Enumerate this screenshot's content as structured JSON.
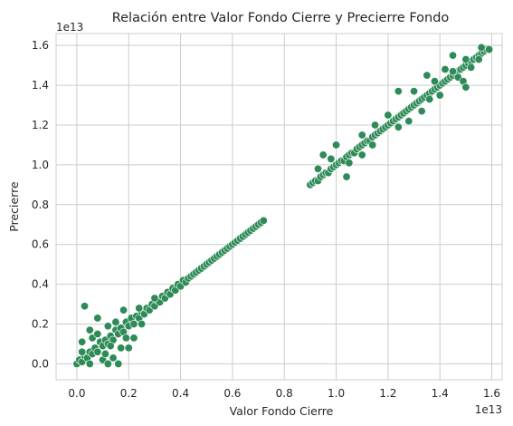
{
  "chart_data": {
    "type": "scatter",
    "title": "Relación entre Valor Fondo Cierre y Precierre Fondo",
    "xlabel": "Valor Fondo Cierre",
    "ylabel": "Precierre",
    "x_offset_label": "1e13",
    "y_offset_label": "1e13",
    "xlim": [
      -0.08,
      1.64
    ],
    "ylim": [
      -0.08,
      1.66
    ],
    "xticks": [
      0.0,
      0.2,
      0.4,
      0.6,
      0.8,
      1.0,
      1.2,
      1.4,
      1.6
    ],
    "yticks": [
      0.0,
      0.2,
      0.4,
      0.6,
      0.8,
      1.0,
      1.2,
      1.4,
      1.6
    ],
    "xtick_labels": [
      "0.0",
      "0.2",
      "0.4",
      "0.6",
      "0.8",
      "1.0",
      "1.2",
      "1.4",
      "1.6"
    ],
    "ytick_labels": [
      "0.0",
      "0.2",
      "0.4",
      "0.6",
      "0.8",
      "1.0",
      "1.2",
      "1.4",
      "1.6"
    ],
    "grid": true,
    "point_color": "#2e8b57",
    "series": [
      {
        "points": [
          [
            0.0,
            0.0
          ],
          [
            0.01,
            0.02
          ],
          [
            0.02,
            0.01
          ],
          [
            0.03,
            0.04
          ],
          [
            0.04,
            0.03
          ],
          [
            0.05,
            0.06
          ],
          [
            0.06,
            0.05
          ],
          [
            0.07,
            0.08
          ],
          [
            0.08,
            0.06
          ],
          [
            0.09,
            0.11
          ],
          [
            0.1,
            0.09
          ],
          [
            0.11,
            0.12
          ],
          [
            0.12,
            0.1
          ],
          [
            0.13,
            0.14
          ],
          [
            0.14,
            0.12
          ],
          [
            0.15,
            0.17
          ],
          [
            0.16,
            0.15
          ],
          [
            0.17,
            0.18
          ],
          [
            0.18,
            0.16
          ],
          [
            0.19,
            0.21
          ],
          [
            0.2,
            0.19
          ],
          [
            0.21,
            0.23
          ],
          [
            0.22,
            0.2
          ],
          [
            0.23,
            0.24
          ],
          [
            0.24,
            0.23
          ],
          [
            0.25,
            0.26
          ],
          [
            0.26,
            0.25
          ],
          [
            0.27,
            0.28
          ],
          [
            0.28,
            0.27
          ],
          [
            0.29,
            0.3
          ],
          [
            0.3,
            0.29
          ],
          [
            0.31,
            0.32
          ],
          [
            0.32,
            0.31
          ],
          [
            0.33,
            0.34
          ],
          [
            0.34,
            0.33
          ],
          [
            0.35,
            0.36
          ],
          [
            0.36,
            0.35
          ],
          [
            0.37,
            0.38
          ],
          [
            0.38,
            0.37
          ],
          [
            0.39,
            0.4
          ],
          [
            0.4,
            0.39
          ],
          [
            0.41,
            0.42
          ],
          [
            0.42,
            0.41
          ],
          [
            0.43,
            0.43
          ],
          [
            0.44,
            0.44
          ],
          [
            0.45,
            0.45
          ],
          [
            0.46,
            0.46
          ],
          [
            0.47,
            0.47
          ],
          [
            0.48,
            0.48
          ],
          [
            0.49,
            0.49
          ],
          [
            0.5,
            0.5
          ],
          [
            0.51,
            0.51
          ],
          [
            0.52,
            0.52
          ],
          [
            0.53,
            0.53
          ],
          [
            0.54,
            0.54
          ],
          [
            0.55,
            0.55
          ],
          [
            0.56,
            0.56
          ],
          [
            0.57,
            0.57
          ],
          [
            0.58,
            0.58
          ],
          [
            0.59,
            0.59
          ],
          [
            0.6,
            0.6
          ],
          [
            0.61,
            0.61
          ],
          [
            0.62,
            0.62
          ],
          [
            0.63,
            0.63
          ],
          [
            0.64,
            0.64
          ],
          [
            0.65,
            0.65
          ],
          [
            0.66,
            0.66
          ],
          [
            0.67,
            0.67
          ],
          [
            0.68,
            0.68
          ],
          [
            0.69,
            0.69
          ],
          [
            0.7,
            0.7
          ],
          [
            0.71,
            0.71
          ],
          [
            0.72,
            0.72
          ],
          [
            0.03,
            0.29
          ],
          [
            0.08,
            0.23
          ],
          [
            0.05,
            0.17
          ],
          [
            0.12,
            0.19
          ],
          [
            0.15,
            0.21
          ],
          [
            0.18,
            0.27
          ],
          [
            0.02,
            0.11
          ],
          [
            0.06,
            0.13
          ],
          [
            0.1,
            0.02
          ],
          [
            0.14,
            0.03
          ],
          [
            0.16,
            0.0
          ],
          [
            0.17,
            0.08
          ],
          [
            0.2,
            0.08
          ],
          [
            0.22,
            0.13
          ],
          [
            0.25,
            0.2
          ],
          [
            0.05,
            0.0
          ],
          [
            0.12,
            0.0
          ],
          [
            0.02,
            0.06
          ],
          [
            0.24,
            0.28
          ],
          [
            0.3,
            0.33
          ],
          [
            0.08,
            0.15
          ],
          [
            0.11,
            0.05
          ],
          [
            0.13,
            0.09
          ],
          [
            0.19,
            0.13
          ],
          [
            0.9,
            0.9
          ],
          [
            0.91,
            0.91
          ],
          [
            0.92,
            0.92
          ],
          [
            0.93,
            0.92
          ],
          [
            0.94,
            0.94
          ],
          [
            0.95,
            0.95
          ],
          [
            0.96,
            0.96
          ],
          [
            0.97,
            0.96
          ],
          [
            0.98,
            0.98
          ],
          [
            0.99,
            0.99
          ],
          [
            1.0,
            1.0
          ],
          [
            1.01,
            1.01
          ],
          [
            1.02,
            1.02
          ],
          [
            1.03,
            1.02
          ],
          [
            1.04,
            1.04
          ],
          [
            1.05,
            1.05
          ],
          [
            1.06,
            1.06
          ],
          [
            1.07,
            1.06
          ],
          [
            1.08,
            1.08
          ],
          [
            1.09,
            1.09
          ],
          [
            1.1,
            1.1
          ],
          [
            1.11,
            1.11
          ],
          [
            1.12,
            1.12
          ],
          [
            1.13,
            1.12
          ],
          [
            1.14,
            1.14
          ],
          [
            1.15,
            1.15
          ],
          [
            1.16,
            1.16
          ],
          [
            1.17,
            1.17
          ],
          [
            1.18,
            1.18
          ],
          [
            1.19,
            1.19
          ],
          [
            1.2,
            1.2
          ],
          [
            1.21,
            1.21
          ],
          [
            1.22,
            1.22
          ],
          [
            1.23,
            1.23
          ],
          [
            1.24,
            1.24
          ],
          [
            1.25,
            1.25
          ],
          [
            1.26,
            1.26
          ],
          [
            1.27,
            1.27
          ],
          [
            1.28,
            1.28
          ],
          [
            1.29,
            1.29
          ],
          [
            1.3,
            1.3
          ],
          [
            1.31,
            1.31
          ],
          [
            1.32,
            1.32
          ],
          [
            1.33,
            1.33
          ],
          [
            1.34,
            1.34
          ],
          [
            1.35,
            1.35
          ],
          [
            1.36,
            1.36
          ],
          [
            1.37,
            1.37
          ],
          [
            1.38,
            1.38
          ],
          [
            1.39,
            1.39
          ],
          [
            1.4,
            1.4
          ],
          [
            1.41,
            1.41
          ],
          [
            1.42,
            1.42
          ],
          [
            1.43,
            1.43
          ],
          [
            1.44,
            1.44
          ],
          [
            1.45,
            1.45
          ],
          [
            1.46,
            1.46
          ],
          [
            1.47,
            1.47
          ],
          [
            1.48,
            1.48
          ],
          [
            1.49,
            1.49
          ],
          [
            1.5,
            1.5
          ],
          [
            1.51,
            1.51
          ],
          [
            1.52,
            1.52
          ],
          [
            1.53,
            1.53
          ],
          [
            1.54,
            1.54
          ],
          [
            1.55,
            1.55
          ],
          [
            1.56,
            1.56
          ],
          [
            1.57,
            1.57
          ],
          [
            1.58,
            1.58
          ],
          [
            1.59,
            1.58
          ],
          [
            0.95,
            1.05
          ],
          [
            0.93,
            0.98
          ],
          [
            0.98,
            1.03
          ],
          [
            1.04,
            0.94
          ],
          [
            1.0,
            1.1
          ],
          [
            1.1,
            1.15
          ],
          [
            1.15,
            1.2
          ],
          [
            1.2,
            1.25
          ],
          [
            1.24,
            1.37
          ],
          [
            1.3,
            1.37
          ],
          [
            1.35,
            1.45
          ],
          [
            1.38,
            1.42
          ],
          [
            1.42,
            1.48
          ],
          [
            1.45,
            1.55
          ],
          [
            1.5,
            1.53
          ],
          [
            1.47,
            1.44
          ],
          [
            1.49,
            1.42
          ],
          [
            1.5,
            1.39
          ],
          [
            1.4,
            1.35
          ],
          [
            1.33,
            1.27
          ],
          [
            1.28,
            1.22
          ],
          [
            1.24,
            1.19
          ],
          [
            1.1,
            1.05
          ],
          [
            1.05,
            1.01
          ],
          [
            1.56,
            1.59
          ],
          [
            1.55,
            1.53
          ],
          [
            1.52,
            1.49
          ],
          [
            1.45,
            1.47
          ],
          [
            1.36,
            1.33
          ],
          [
            1.14,
            1.1
          ]
        ]
      }
    ]
  }
}
